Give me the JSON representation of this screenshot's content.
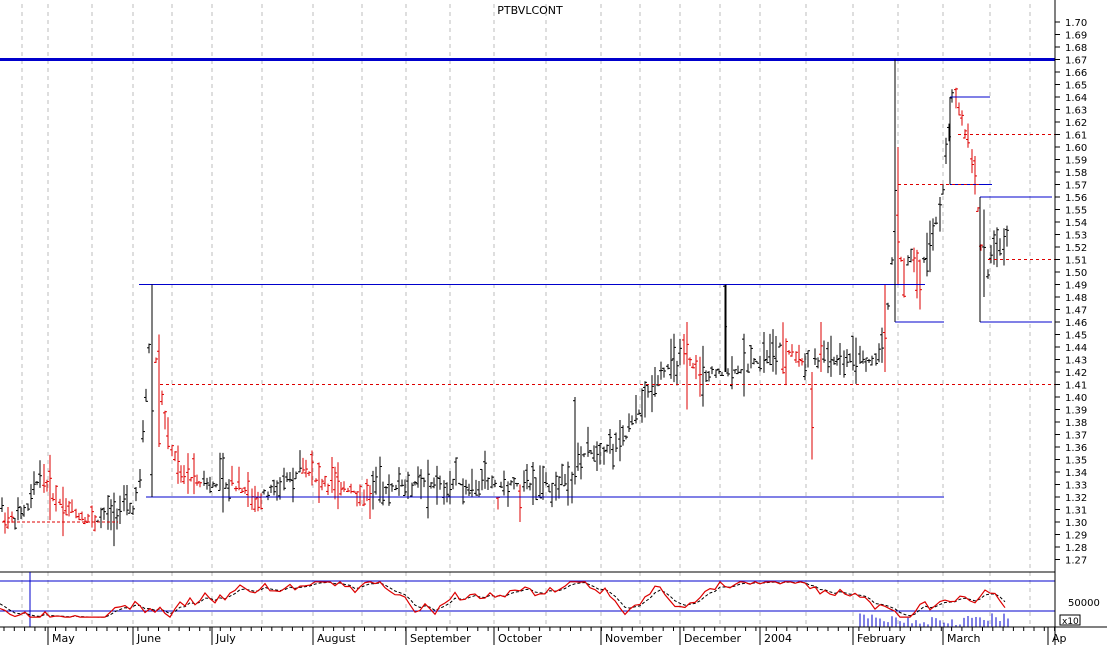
{
  "chart_data": {
    "type": "ohlc",
    "title": "PTBVLCONT",
    "y_axis": {
      "side": "right",
      "min": 1.26,
      "max": 1.71,
      "ticks": [
        "1.27",
        "1.28",
        "1.29",
        "1.30",
        "1.31",
        "1.32",
        "1.33",
        "1.34",
        "1.35",
        "1.36",
        "1.37",
        "1.38",
        "1.39",
        "1.40",
        "1.41",
        "1.42",
        "1.43",
        "1.44",
        "1.45",
        "1.46",
        "1.47",
        "1.48",
        "1.49",
        "1.50",
        "1.51",
        "1.52",
        "1.53",
        "1.54",
        "1.55",
        "1.56",
        "1.57",
        "1.58",
        "1.59",
        "1.60",
        "1.61",
        "1.62",
        "1.63",
        "1.64",
        "1.65",
        "1.66",
        "1.67",
        "1.68",
        "1.69",
        "1.70"
      ]
    },
    "x_axis": {
      "labels": [
        "May",
        "June",
        "July",
        "August",
        "September",
        "October",
        "November",
        "December",
        "2004",
        "February",
        "March",
        "Ap"
      ]
    },
    "grid": "vertical dotted",
    "colors": {
      "up": "#000000",
      "down": "#dd0000",
      "trendline": "#0000cc",
      "resistance": "#0000cc",
      "dashed": "#dd0000"
    },
    "resistance_level": 1.67,
    "dashed_levels": [
      1.41,
      1.57,
      1.61,
      1.51
    ],
    "oscillator": {
      "upper_band": 70,
      "lower_band": 30,
      "scale_label": "50000",
      "multiplier_label": "x10"
    }
  }
}
